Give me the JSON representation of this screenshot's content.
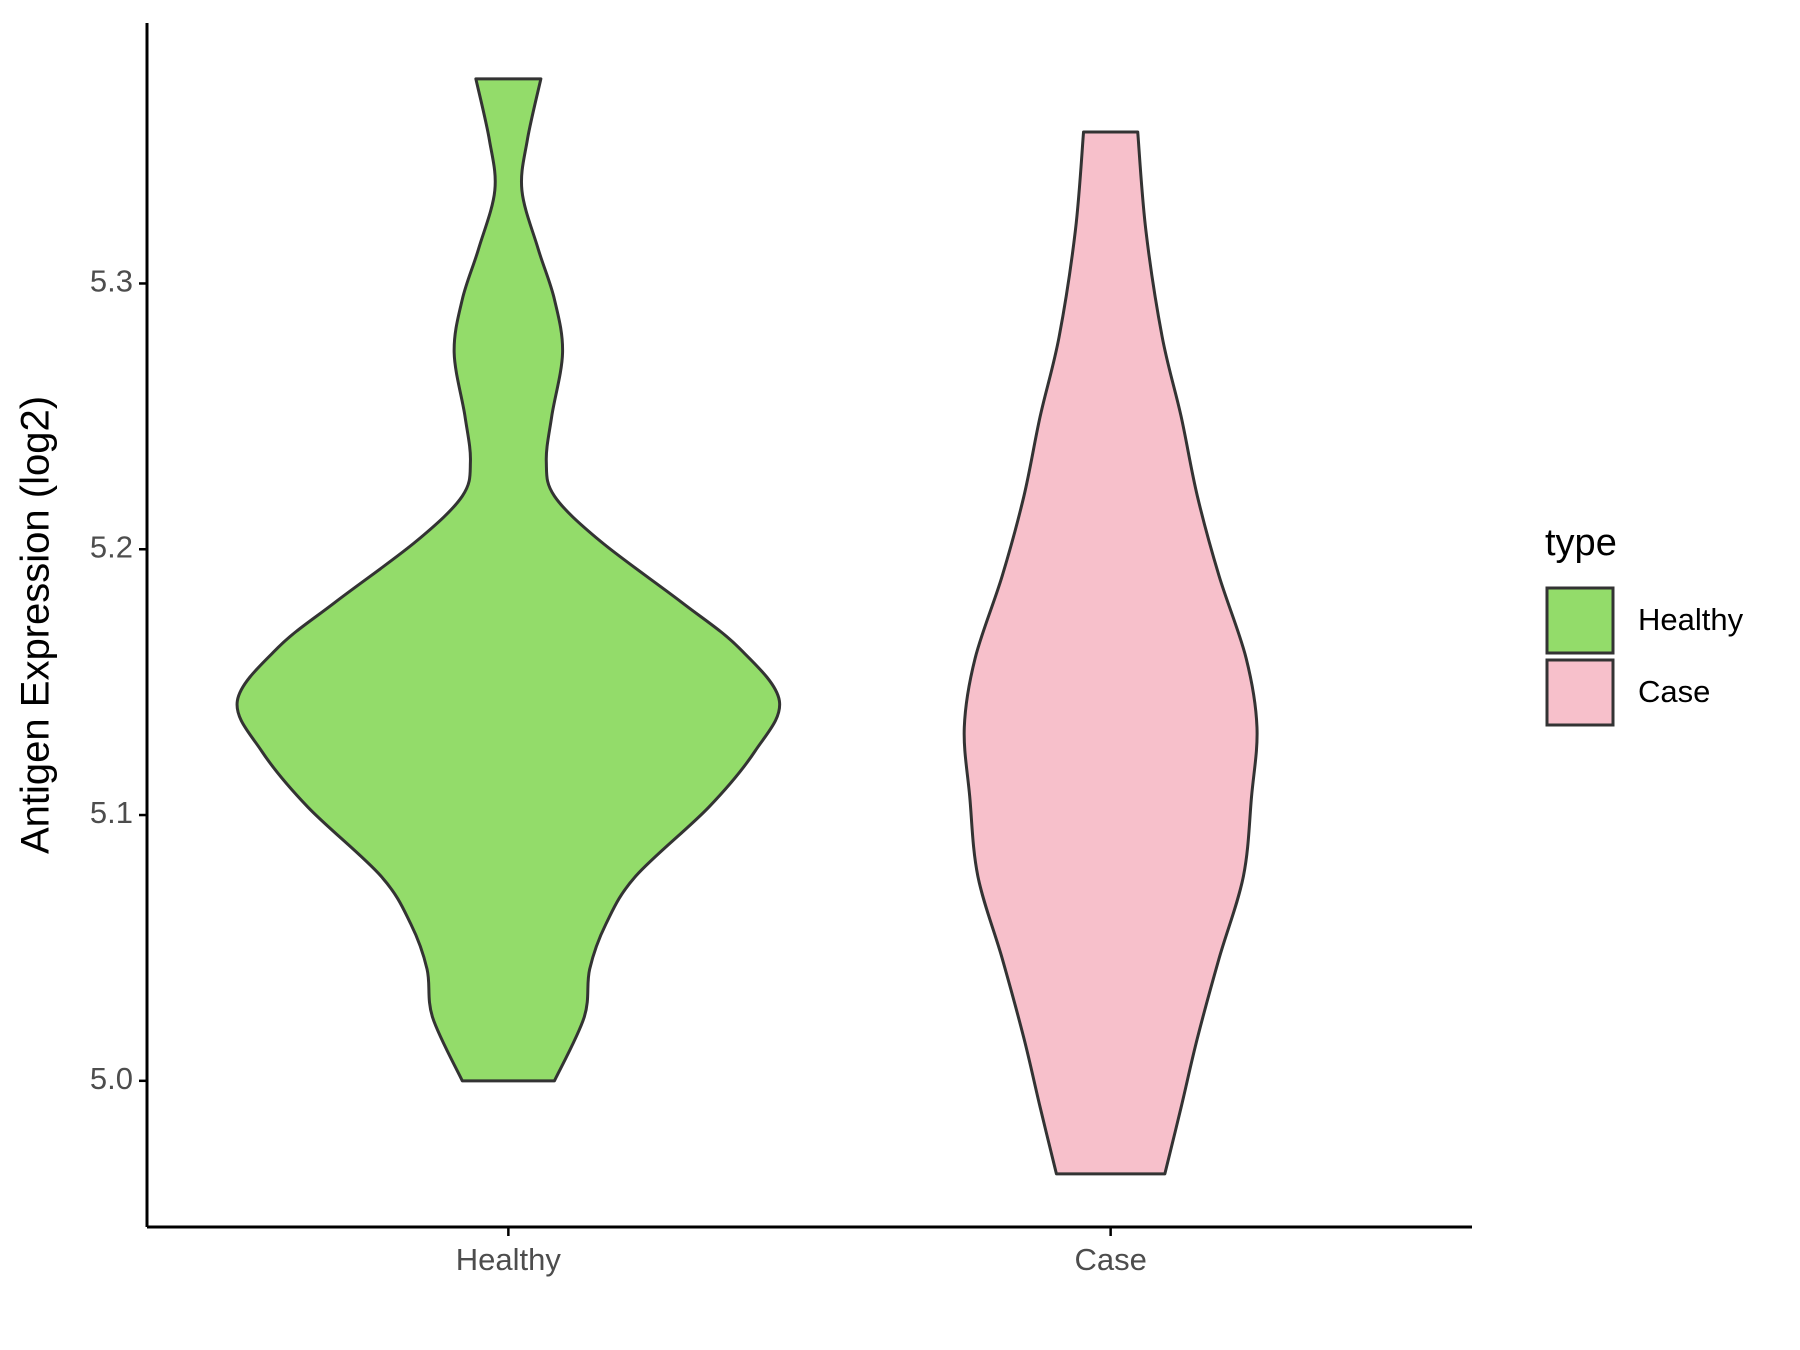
{
  "chart_data": {
    "type": "violin",
    "ylabel": "Antigen Expression (log2)",
    "categories": [
      "Healthy",
      "Case"
    ],
    "ylim": [
      4.945,
      5.398
    ],
    "yticks": [
      {
        "value": 5,
        "label": "5.0"
      },
      5.1,
      5.2,
      5.3
    ],
    "legend_title": "type",
    "legend_position": "right",
    "series": [
      {
        "name": "Healthy",
        "color": "#93dc6a",
        "y": [
          5.0,
          5.024,
          5.042,
          5.059,
          5.077,
          5.103,
          5.124,
          5.143,
          5.163,
          5.18,
          5.203,
          5.22,
          5.233,
          5.25,
          5.274,
          5.294,
          5.313,
          5.335,
          5.354,
          5.377
        ],
        "density": [
          0.17,
          0.28,
          0.3,
          0.36,
          0.47,
          0.74,
          0.91,
          1.0,
          0.85,
          0.64,
          0.34,
          0.17,
          0.14,
          0.16,
          0.2,
          0.17,
          0.11,
          0.05,
          0.07,
          0.12
        ]
      },
      {
        "name": "Case",
        "color": "#f7c0cb",
        "y": [
          4.965,
          4.99,
          5.016,
          5.046,
          5.077,
          5.107,
          5.133,
          5.159,
          5.19,
          5.22,
          5.25,
          5.28,
          5.32,
          5.357
        ],
        "density": [
          0.2,
          0.26,
          0.32,
          0.4,
          0.49,
          0.52,
          0.54,
          0.5,
          0.4,
          0.32,
          0.26,
          0.19,
          0.13,
          0.1
        ]
      }
    ]
  }
}
